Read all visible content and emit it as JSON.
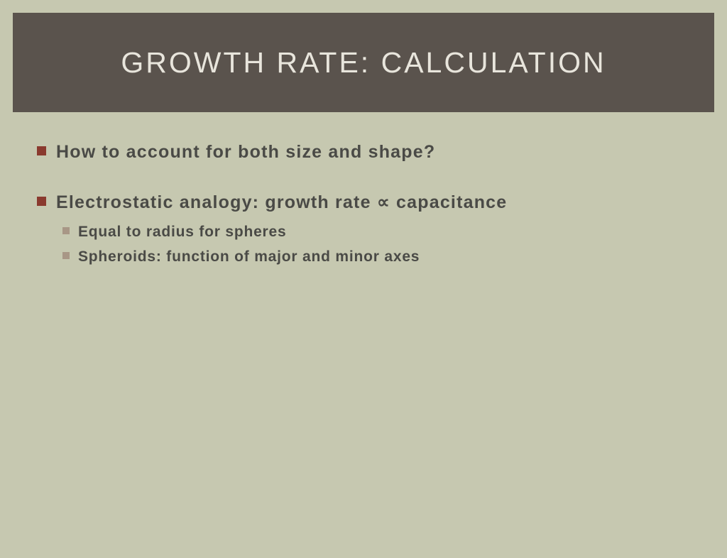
{
  "slide": {
    "title": "GROWTH RATE: CALCULATION",
    "bullets": {
      "item1": "How to account for both size and shape?",
      "item2_prefix": "Electrostatic analogy: growth rate ",
      "item2_symbol": "∝",
      "item2_bold": " capacitance",
      "sub1": "Equal to radius for spheres",
      "sub2": "Spheroids: function of major and minor axes"
    }
  },
  "colors": {
    "background": "#c6c8b0",
    "header_band": "#5a534d",
    "title_text": "#e8e5dc",
    "body_text": "#4a4a46",
    "bullet_main": "#8a3a2e",
    "bullet_sub": "#a89786"
  },
  "typography": {
    "title_fontsize": 41,
    "title_letterspacing": 3,
    "body_fontsize": 25,
    "sub_fontsize": 21
  }
}
